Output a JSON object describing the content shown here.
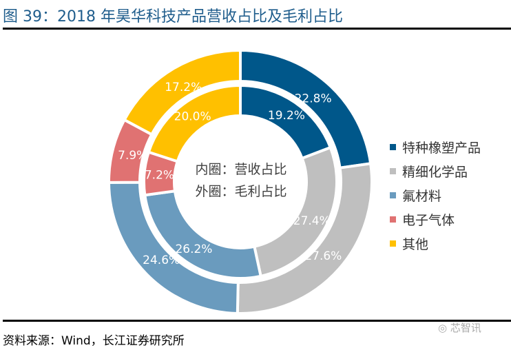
{
  "title": "图 39：2018 年昊华科技产品营收占比及毛利占比",
  "source": "资料来源：Wind，长江证券研究所",
  "watermark": "芯智讯",
  "chart_data": {
    "type": "donut",
    "categories": [
      "特种橡塑产品",
      "精细化学品",
      "氟材料",
      "电子气体",
      "其他"
    ],
    "colors": [
      "#00578A",
      "#BFBFBF",
      "#6A9BBE",
      "#E07272",
      "#FFC000"
    ],
    "center_text": [
      "内圈：营收占比",
      "外圈：毛利占比"
    ],
    "series": [
      {
        "name": "营收占比",
        "ring": "inner",
        "values": [
          19.2,
          27.4,
          26.2,
          7.2,
          20.0
        ],
        "labels": [
          "19.2%",
          "27.4%",
          "26.2%",
          "7.2%",
          "20.0%"
        ]
      },
      {
        "name": "毛利占比",
        "ring": "outer",
        "values": [
          22.8,
          27.6,
          24.6,
          7.9,
          17.2
        ],
        "labels": [
          "22.8%",
          "27.6%",
          "24.6%",
          "7.9%",
          "17.2%"
        ]
      }
    ],
    "legend_position": "right"
  }
}
